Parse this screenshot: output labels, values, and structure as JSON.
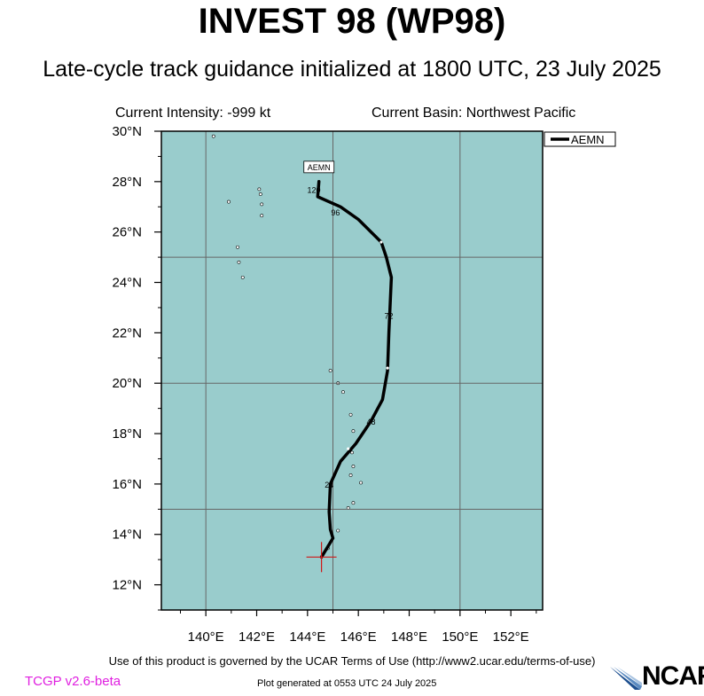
{
  "header": {
    "title": "INVEST 98 (WP98)",
    "subtitle": "Late-cycle track guidance initialized at 1800 UTC, 23 July 2025",
    "current_intensity": "Current Intensity: -999 kt",
    "current_basin": "Current Basin: Northwest Pacific"
  },
  "map": {
    "lon_range": [
      138.25,
      153.25
    ],
    "lat_range": [
      11,
      30
    ],
    "x_ticks": [
      "140°E",
      "142°E",
      "144°E",
      "146°E",
      "148°E",
      "150°E",
      "152°E"
    ],
    "y_ticks": [
      "12°N",
      "14°N",
      "16°N",
      "18°N",
      "20°N",
      "22°N",
      "24°N",
      "26°N",
      "28°N",
      "30°N"
    ],
    "ocean_color": "#99cccc",
    "land_color": "#ffffff",
    "grid_color": "#666666"
  },
  "chart_data": {
    "type": "map-track",
    "series": [
      {
        "name": "AEMN",
        "color": "#000000",
        "track": [
          [
            144.55,
            13.1
          ],
          [
            145.0,
            13.85
          ],
          [
            144.9,
            14.2
          ],
          [
            144.85,
            14.9
          ],
          [
            144.9,
            16.0
          ],
          [
            145.3,
            16.9
          ],
          [
            145.9,
            17.6
          ],
          [
            146.5,
            18.5
          ],
          [
            146.95,
            19.35
          ],
          [
            147.15,
            20.5
          ],
          [
            147.2,
            22.0
          ],
          [
            147.3,
            24.2
          ],
          [
            147.1,
            25.0
          ],
          [
            146.9,
            25.6
          ],
          [
            146.0,
            26.5
          ],
          [
            145.3,
            27.0
          ],
          [
            144.4,
            27.4
          ],
          [
            144.45,
            28.0
          ]
        ],
        "hour_labels": [
          {
            "text": "24",
            "lon": 144.85,
            "lat": 16.0
          },
          {
            "text": "48",
            "lon": 146.5,
            "lat": 18.5
          },
          {
            "text": "72",
            "lon": 147.2,
            "lat": 22.7
          },
          {
            "text": "96",
            "lon": 145.1,
            "lat": 26.8
          },
          {
            "text": "120",
            "lon": 144.25,
            "lat": 27.7
          }
        ],
        "end_label": "AEMN"
      }
    ],
    "initial_position": {
      "lon": 144.55,
      "lat": 13.1
    },
    "legend": {
      "position": "top-right",
      "label": "AEMN"
    },
    "islands": [
      [
        140.3,
        29.8
      ],
      [
        142.1,
        27.7
      ],
      [
        142.15,
        27.5
      ],
      [
        142.2,
        27.1
      ],
      [
        142.2,
        26.65
      ],
      [
        140.9,
        27.2
      ],
      [
        141.25,
        25.4
      ],
      [
        141.3,
        24.8
      ],
      [
        141.45,
        24.2
      ],
      [
        144.9,
        20.5
      ],
      [
        145.2,
        20.0
      ],
      [
        145.4,
        19.65
      ],
      [
        145.7,
        18.75
      ],
      [
        145.8,
        18.1
      ],
      [
        145.75,
        17.25
      ],
      [
        145.8,
        16.7
      ],
      [
        145.7,
        16.35
      ],
      [
        146.1,
        16.05
      ],
      [
        145.8,
        15.25
      ],
      [
        145.6,
        15.05
      ],
      [
        145.2,
        14.15
      ],
      [
        144.8,
        13.45
      ]
    ]
  },
  "footer": {
    "terms": "Use of this product is governed by the UCAR Terms of Use (http://www2.ucar.edu/terms-of-use)",
    "version": "TCGP v2.6-beta",
    "generated": "Plot generated at 0553 UTC   24 July 2025",
    "logo": "NCAR"
  }
}
